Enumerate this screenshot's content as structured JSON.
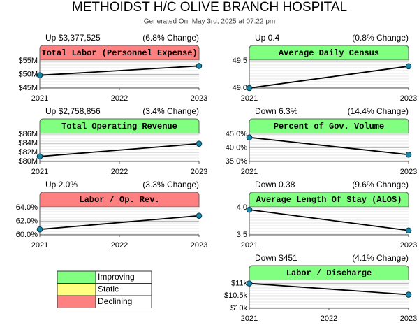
{
  "title": "METHOIDST H/C OLIVE BRANCH HOSPITAL",
  "subtitle": "Generated On: May 3rd, 2025 at 07:22 pm",
  "legend": {
    "items": [
      {
        "name": "Improving",
        "color": "#80ff80"
      },
      {
        "name": "Static",
        "color": "#ffff80"
      },
      {
        "name": "Declining",
        "color": "#ff8080"
      }
    ]
  },
  "chart_data": [
    {
      "type": "line",
      "title": "Total Labor (Personnel Expense)",
      "summary": "Up $3,377,525",
      "change": "(6.8% Change)",
      "header_color": "#ff8080",
      "x": [
        2021,
        2023
      ],
      "values": [
        49.7,
        53.1
      ],
      "xlim": [
        2021,
        2023
      ],
      "xticks": [
        2021,
        2022,
        2023
      ],
      "ylim": [
        45,
        55
      ],
      "yticks": [
        {
          "value": 45,
          "label": "$45M"
        },
        {
          "value": 50,
          "label": "$50M"
        },
        {
          "value": 55,
          "label": "$55M"
        }
      ],
      "line_color": "#000000",
      "marker_color": "#1a86a8",
      "grid": true
    },
    {
      "type": "line",
      "title": "Average Daily Census",
      "summary": "Up 0.4",
      "change": "(0.8% Change)",
      "header_color": "#80ff80",
      "x": [
        2021,
        2023
      ],
      "values": [
        49.0,
        49.4
      ],
      "xlim": [
        2021,
        2023
      ],
      "xticks": [
        2021,
        2023
      ],
      "ylim": [
        49.0,
        49.5
      ],
      "yticks": [
        {
          "value": 49,
          "label": "49.0"
        },
        49.5
      ],
      "line_color": "#000000",
      "marker_color": "#1a86a8",
      "grid": true
    },
    {
      "type": "line",
      "title": "Total Operating Revenue",
      "summary": "Up $2,758,856",
      "change": "(3.4% Change)",
      "header_color": "#80ff80",
      "x": [
        2021,
        2023
      ],
      "values": [
        81.1,
        83.9
      ],
      "xlim": [
        2021,
        2023
      ],
      "xticks": [
        2021,
        2022,
        2023
      ],
      "ylim": [
        80,
        86
      ],
      "yticks": [
        {
          "value": 80,
          "label": "$80M"
        },
        {
          "value": 82,
          "label": "$82M"
        },
        {
          "value": 84,
          "label": "$84M"
        },
        {
          "value": 86,
          "label": "$86M"
        }
      ],
      "line_color": "#000000",
      "marker_color": "#1a86a8",
      "grid": true
    },
    {
      "type": "line",
      "title": "Percent of Gov. Volume",
      "summary": "Down 6.3%",
      "change": "(14.4% Change)",
      "header_color": "#80ff80",
      "x": [
        2021,
        2023
      ],
      "values": [
        43.8,
        37.5
      ],
      "xlim": [
        2021,
        2023
      ],
      "xticks": [
        2021,
        2023
      ],
      "ylim": [
        35,
        45
      ],
      "yticks": [
        {
          "value": 35,
          "label": "35.0%"
        },
        {
          "value": 40,
          "label": "40.0%"
        },
        {
          "value": 45,
          "label": "45.0%"
        }
      ],
      "line_color": "#000000",
      "marker_color": "#1a86a8",
      "grid": true
    },
    {
      "type": "line",
      "title": "Labor / Op. Rev.",
      "summary": "Up 2.0%",
      "change": "(3.3% Change)",
      "header_color": "#ff8080",
      "x": [
        2021,
        2023
      ],
      "values": [
        60.8,
        62.8
      ],
      "xlim": [
        2021,
        2023
      ],
      "xticks": [
        2021,
        2022,
        2023
      ],
      "ylim": [
        60,
        64
      ],
      "yticks": [
        {
          "value": 60,
          "label": "60.0%"
        },
        {
          "value": 62,
          "label": "62.0%"
        },
        {
          "value": 64,
          "label": "64.0%"
        }
      ],
      "line_color": "#000000",
      "marker_color": "#1a86a8",
      "grid": true
    },
    {
      "type": "line",
      "title": "Average Length Of Stay (ALOS)",
      "summary": "Down 0.38",
      "change": "(9.6% Change)",
      "header_color": "#80ff80",
      "x": [
        2021,
        2023
      ],
      "values": [
        3.96,
        3.58
      ],
      "xlim": [
        2021,
        2023
      ],
      "xticks": [
        2021,
        2023
      ],
      "ylim": [
        3.5,
        4.0
      ],
      "yticks": [
        3.5,
        {
          "value": 4,
          "label": "4.0"
        }
      ],
      "line_color": "#000000",
      "marker_color": "#1a86a8",
      "grid": true
    },
    {
      "type": "line",
      "title": "Labor / Discharge",
      "summary": "Down $451",
      "change": "(4.1% Change)",
      "header_color": "#80ff80",
      "x": [
        2021,
        2023
      ],
      "values": [
        11000,
        10549
      ],
      "xlim": [
        2021,
        2023
      ],
      "xticks": [
        2021,
        2022,
        2023
      ],
      "ylim": [
        10000,
        11100
      ],
      "yticks": [
        {
          "value": 10000,
          "label": "$10k"
        },
        {
          "value": 10500,
          "label": "$10.5k"
        },
        {
          "value": 11000,
          "label": "$11k"
        }
      ],
      "line_color": "#000000",
      "marker_color": "#1a86a8",
      "grid": true
    }
  ]
}
